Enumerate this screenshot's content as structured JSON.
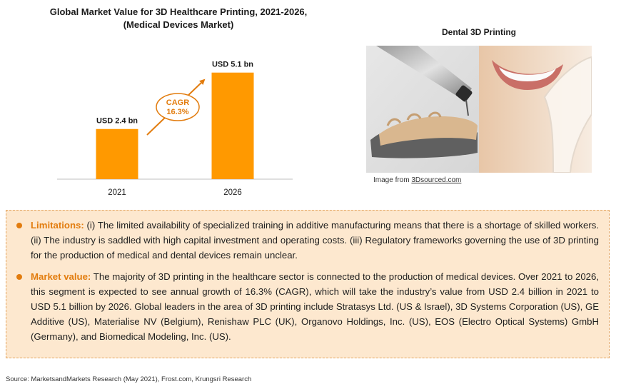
{
  "chart_data": {
    "type": "bar",
    "title": "Global Market Value for 3D Healthcare Printing, 2021-2026, (Medical Devices Market)",
    "categories": [
      "2021",
      "2026"
    ],
    "values": [
      2.4,
      5.1
    ],
    "unit": "USD bn",
    "data_labels": [
      "USD 2.4 bn",
      "USD 5.1 bn"
    ],
    "annotation": {
      "line1": "CAGR",
      "line2": "16.3%"
    },
    "bar_color": "#ff9900",
    "ylim": [
      0,
      5.5
    ],
    "grid": false,
    "legend": "none"
  },
  "photo": {
    "title": "Dental 3D Printing",
    "credit_prefix": "Image from ",
    "credit_link": "3Dsourced.com"
  },
  "info": {
    "limitations_head": "Limitations:",
    "limitations_text": " (i) The limited availability of specialized training in additive manufacturing means that there is a shortage of skilled workers. (ii) The industry is saddled with high capital investment and operating costs. (iii) Regulatory frameworks governing the use of 3D printing for the production of medical and dental devices remain unclear.",
    "market_head": "Market value:",
    "market_text": " The majority of 3D printing in the healthcare sector is connected to the production of medical devices. Over 2021 to 2026, this segment is expected to see annual growth of 16.3% (CAGR), which will take the industry’s value from USD 2.4 billion in 2021 to USD 5.1 billion by 2026. Global leaders in the area of 3D printing include Stratasys Ltd. (US & Israel), 3D Systems Corporation (US), GE Additive (US), Materialise NV (Belgium), Renishaw PLC (UK), Organovo Holdings, Inc. (US), EOS (Electro Optical Systems) GmbH (Germany), and Biomedical Modeling, Inc. (US)."
  },
  "source": "Source: MarketsandMarkets Research (May 2021), Frost.com, Krungsri Research",
  "colors": {
    "accent": "#e27c0e",
    "box_bg": "#fde8cf",
    "box_border": "#e3a561"
  }
}
